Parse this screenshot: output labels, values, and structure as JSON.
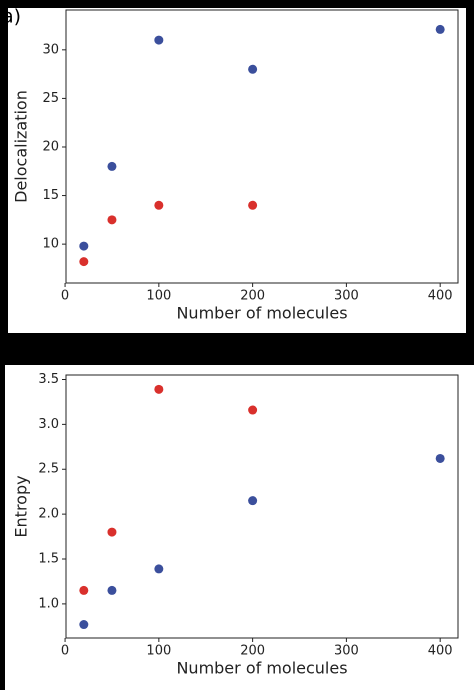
{
  "chart_data": [
    {
      "type": "scatter",
      "annotation": "a)",
      "xlabel": "Number of molecules",
      "ylabel": "Delocalization",
      "x": [
        20,
        50,
        100,
        200,
        400
      ],
      "series": [
        {
          "color": "#3b4f9c",
          "values": [
            9.8,
            18,
            31,
            28,
            32.1
          ]
        },
        {
          "color": "#d9302c",
          "values": [
            8.2,
            12.5,
            14,
            14,
            null
          ]
        }
      ],
      "xlim": [
        1,
        419
      ],
      "xticks": [
        0,
        100,
        200,
        300,
        400
      ],
      "ylim": [
        6.0,
        34.1
      ],
      "yticks": [
        10,
        15,
        20,
        25,
        30
      ]
    },
    {
      "type": "scatter",
      "xlabel": "Number of molecules",
      "ylabel": "Entropy",
      "x": [
        20,
        50,
        100,
        200,
        400
      ],
      "series": [
        {
          "color": "#3b4f9c",
          "values": [
            0.77,
            1.15,
            1.39,
            2.15,
            2.62
          ]
        },
        {
          "color": "#d9302c",
          "values": [
            1.15,
            1.8,
            3.39,
            3.16,
            null
          ]
        }
      ],
      "xlim": [
        1,
        419
      ],
      "xticks": [
        0,
        100,
        200,
        300,
        400
      ],
      "ylim": [
        0.62,
        3.55
      ],
      "yticks": [
        {
          "value": 1,
          "label": "1.0"
        },
        1.5,
        {
          "value": 2,
          "label": "2.0"
        },
        2.5,
        {
          "value": 3,
          "label": "3.0"
        },
        3.5
      ]
    }
  ]
}
